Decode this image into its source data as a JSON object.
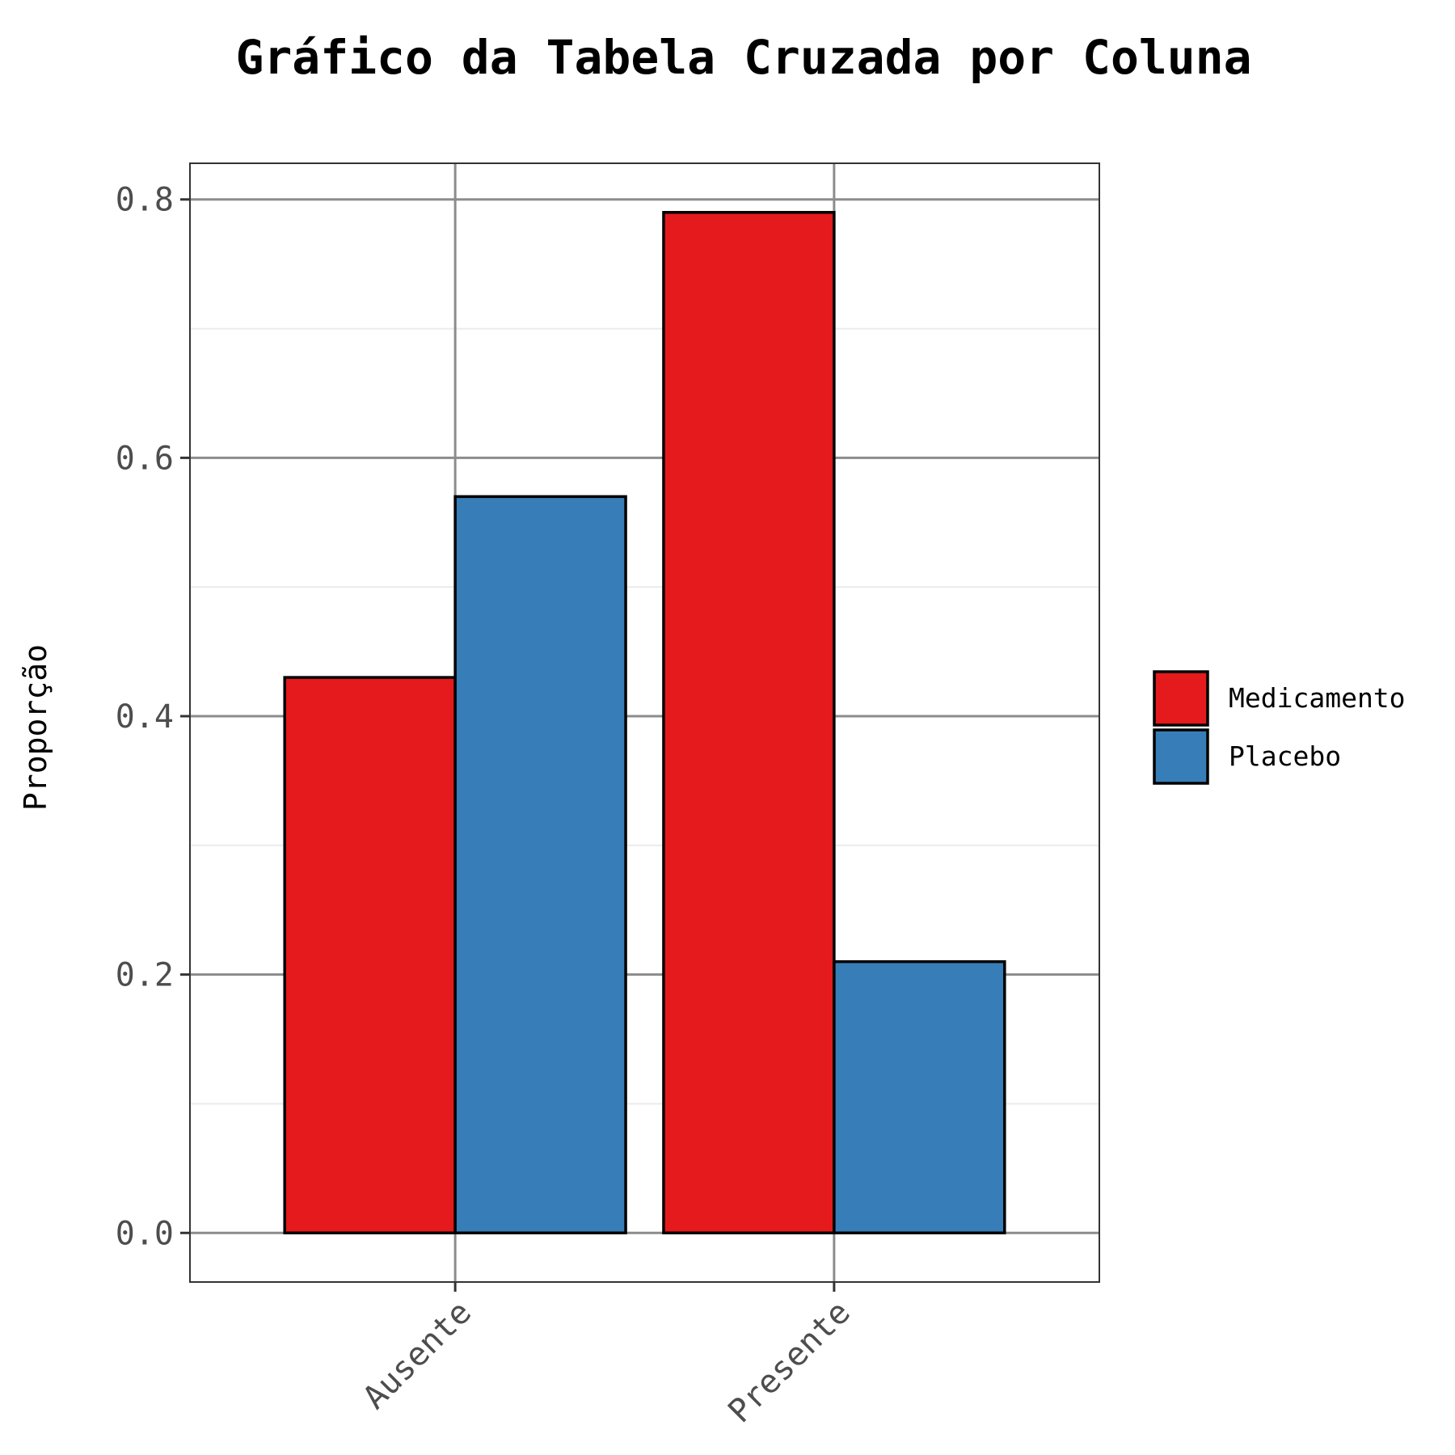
{
  "chart_data": {
    "type": "bar",
    "title": "Gráfico da Tabela Cruzada por Coluna",
    "xlabel": "",
    "ylabel": "Proporção",
    "categories": [
      "Ausente",
      "Presente"
    ],
    "series": [
      {
        "name": "Medicamento",
        "color": "#E41A1C",
        "values": [
          0.43,
          0.79
        ]
      },
      {
        "name": "Placebo",
        "color": "#377EB8",
        "values": [
          0.57,
          0.21
        ]
      }
    ],
    "ylim": [
      -0.038,
      0.828
    ],
    "yticks": [
      0.0,
      0.2,
      0.4,
      0.6,
      0.8
    ],
    "ytick_labels": [
      "0.0",
      "0.2",
      "0.4",
      "0.6",
      "0.8"
    ],
    "grid": true,
    "legend_position": "right"
  }
}
